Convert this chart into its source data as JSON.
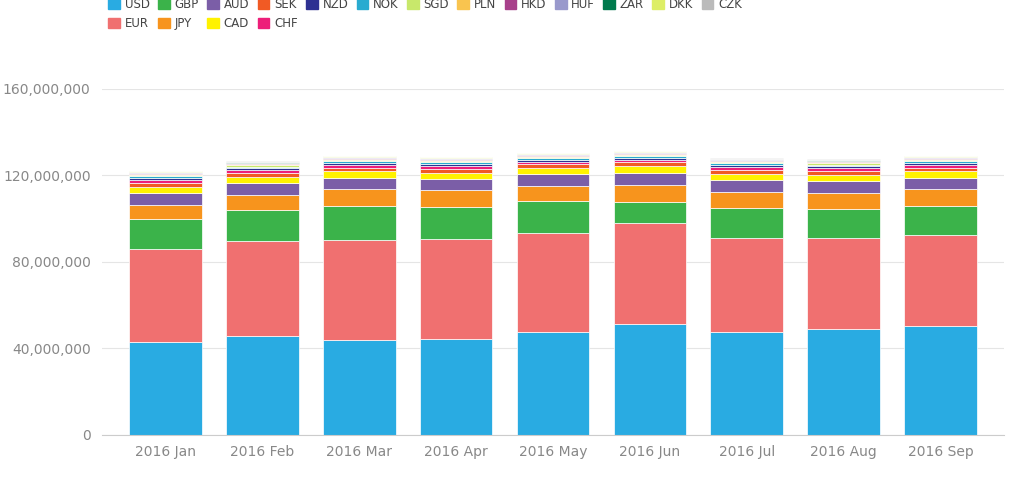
{
  "months": [
    "2016 Jan",
    "2016 Feb",
    "2016 Mar",
    "2016 Apr",
    "2016 May",
    "2016 Jun",
    "2016 Jul",
    "2016 Aug",
    "2016 Sep"
  ],
  "currencies": [
    "USD",
    "EUR",
    "GBP",
    "JPY",
    "AUD",
    "CAD",
    "SEK",
    "CHF",
    "NZD",
    "NOK",
    "SGD",
    "PLN",
    "HKD",
    "HUF",
    "ZAR",
    "DKK",
    "CZK"
  ],
  "colors": {
    "USD": "#29ABE2",
    "EUR": "#F07070",
    "GBP": "#3BB34A",
    "JPY": "#F7941D",
    "AUD": "#7B5EA7",
    "CAD": "#FFF200",
    "SEK": "#F15A24",
    "CHF": "#ED1E79",
    "NZD": "#2E3192",
    "NOK": "#29ABD0",
    "SGD": "#C8E86B",
    "PLN": "#F9C44F",
    "HKD": "#A8408B",
    "HUF": "#9999CC",
    "ZAR": "#007A4D",
    "DKK": "#DDEE66",
    "CZK": "#BBBBBB"
  },
  "values": {
    "USD": [
      43000000,
      45500000,
      44000000,
      44500000,
      47500000,
      51000000,
      47500000,
      49000000,
      50500000
    ],
    "EUR": [
      43000000,
      44000000,
      46000000,
      46000000,
      46000000,
      47000000,
      43500000,
      42000000,
      42000000
    ],
    "GBP": [
      14000000,
      14500000,
      16000000,
      15000000,
      14500000,
      9500000,
      14000000,
      13500000,
      13500000
    ],
    "JPY": [
      6500000,
      7000000,
      7500000,
      7500000,
      7000000,
      8000000,
      7500000,
      7500000,
      7500000
    ],
    "AUD": [
      5500000,
      5500000,
      5500000,
      5500000,
      5500000,
      5500000,
      5500000,
      5500000,
      5500000
    ],
    "CAD": [
      2800000,
      2800000,
      2800000,
      2800000,
      2800000,
      3200000,
      2800000,
      2800000,
      2800000
    ],
    "SEK": [
      1800000,
      1800000,
      1800000,
      1800000,
      1800000,
      1800000,
      1800000,
      1800000,
      1800000
    ],
    "CHF": [
      1200000,
      1200000,
      1200000,
      1200000,
      1200000,
      1200000,
      1200000,
      1200000,
      1200000
    ],
    "NZD": [
      900000,
      900000,
      900000,
      900000,
      900000,
      900000,
      900000,
      900000,
      900000
    ],
    "NOK": [
      800000,
      800000,
      800000,
      800000,
      800000,
      800000,
      800000,
      800000,
      800000
    ],
    "SGD": [
      600000,
      600000,
      600000,
      600000,
      600000,
      600000,
      600000,
      600000,
      600000
    ],
    "PLN": [
      500000,
      500000,
      500000,
      500000,
      500000,
      500000,
      500000,
      500000,
      500000
    ],
    "HKD": [
      400000,
      400000,
      400000,
      400000,
      400000,
      400000,
      400000,
      400000,
      400000
    ],
    "HUF": [
      350000,
      350000,
      350000,
      350000,
      350000,
      350000,
      350000,
      350000,
      350000
    ],
    "ZAR": [
      250000,
      250000,
      250000,
      250000,
      250000,
      250000,
      250000,
      250000,
      250000
    ],
    "DKK": [
      200000,
      200000,
      200000,
      200000,
      200000,
      200000,
      200000,
      200000,
      200000
    ],
    "CZK": [
      150000,
      150000,
      150000,
      150000,
      150000,
      150000,
      150000,
      150000,
      150000
    ]
  },
  "legend_row1": [
    "USD",
    "EUR",
    "GBP",
    "JPY",
    "AUD",
    "CAD",
    "SEK",
    "CHF",
    "NZD",
    "NOK",
    "SGD",
    "PLN",
    "HKD"
  ],
  "legend_row2": [
    "HUF",
    "ZAR",
    "DKK",
    "CZK"
  ],
  "ylim": [
    0,
    160000000
  ],
  "yticks": [
    0,
    40000000,
    80000000,
    120000000,
    160000000
  ],
  "background_color": "#FFFFFF",
  "grid_color": "#E5E5E5",
  "bar_width": 0.75
}
